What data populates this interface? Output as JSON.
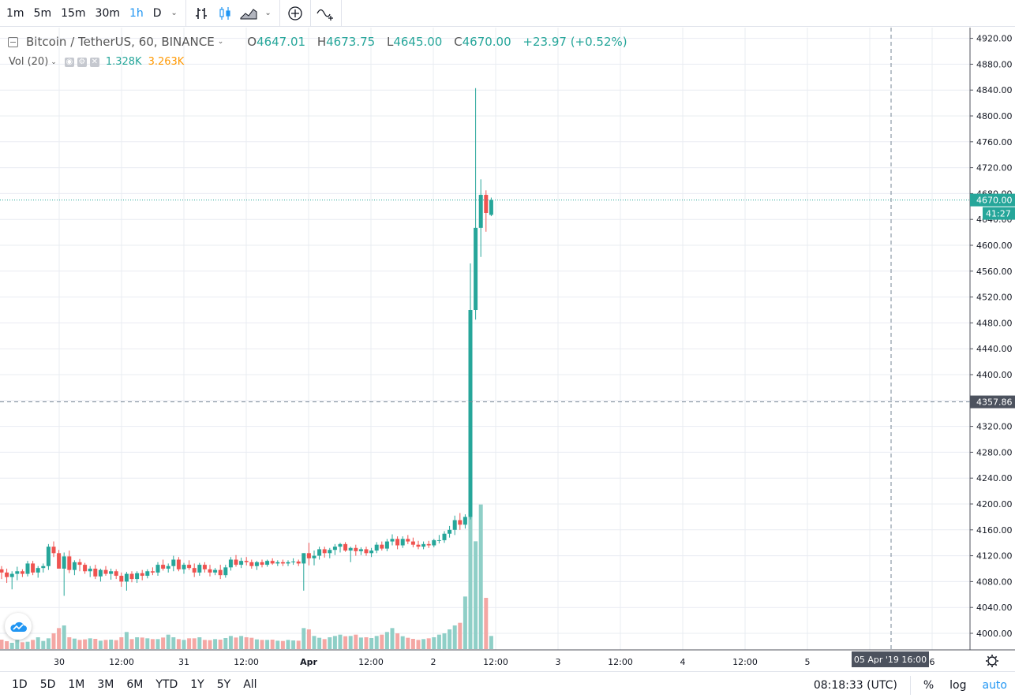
{
  "toolbar": {
    "timeframes": [
      "1m",
      "5m",
      "15m",
      "30m",
      "1h",
      "D"
    ],
    "active_timeframe": "1h",
    "icons": [
      "bar-style-icon",
      "candles-icon",
      "area-style-icon",
      "add-indicator-icon",
      "compare-icon"
    ]
  },
  "legend": {
    "symbol": "Bitcoin / TetherUS, 60, BINANCE",
    "o_label": "O",
    "o": "4647.01",
    "h_label": "H",
    "h": "4673.75",
    "l_label": "L",
    "l": "4645.00",
    "c_label": "C",
    "c": "4670.00",
    "change": "+23.97 (+0.52%)"
  },
  "volume_legend": {
    "label": "Vol (20)",
    "v1": "1.328K",
    "v2": "3.263K",
    "v1_color": "#26a69a",
    "v2_color": "#ff9800"
  },
  "price_axis": {
    "current_price": "4670.00",
    "countdown": "41:27",
    "crosshair_price": "4357.86",
    "current_price_color": "#26a69a",
    "crosshair_color": "#4c525e"
  },
  "time_axis": {
    "crosshair_label": "05 Apr '19   16:00"
  },
  "bottom": {
    "ranges": [
      "1D",
      "5D",
      "1M",
      "3M",
      "6M",
      "YTD",
      "1Y",
      "5Y",
      "All"
    ],
    "clock": "08:18:33 (UTC)",
    "percent": "%",
    "log": "log",
    "auto": "auto"
  },
  "colors": {
    "up": "#26a69a",
    "down": "#ef5350",
    "vol_up": "#8fcfc7",
    "vol_down": "#f4a7a4",
    "grid": "#e9ecf2"
  },
  "chart_data": {
    "type": "candlestick",
    "title": "Bitcoin / TetherUS, 60, BINANCE",
    "ylim": [
      3980,
      4930
    ],
    "y_ticks": [
      4000,
      4040,
      4080,
      4120,
      4160,
      4200,
      4240,
      4280,
      4320,
      4360,
      4400,
      4440,
      4480,
      4520,
      4560,
      4600,
      4640,
      4680,
      4720,
      4760,
      4800,
      4840,
      4880,
      4920
    ],
    "x_ticks": [
      "30",
      "12:00",
      "31",
      "12:00",
      "Apr",
      "12:00",
      "2",
      "12:00",
      "3",
      "12:00",
      "4",
      "12:00",
      "5",
      "12:00",
      "6"
    ],
    "grid": true,
    "candles": [
      {
        "o": 4099,
        "h": 4104,
        "l": 4084,
        "c": 4094
      },
      {
        "o": 4094,
        "h": 4100,
        "l": 4078,
        "c": 4087
      },
      {
        "o": 4087,
        "h": 4096,
        "l": 4068,
        "c": 4092
      },
      {
        "o": 4092,
        "h": 4103,
        "l": 4082,
        "c": 4096
      },
      {
        "o": 4096,
        "h": 4099,
        "l": 4087,
        "c": 4092
      },
      {
        "o": 4092,
        "h": 4112,
        "l": 4088,
        "c": 4108
      },
      {
        "o": 4108,
        "h": 4112,
        "l": 4090,
        "c": 4094
      },
      {
        "o": 4094,
        "h": 4104,
        "l": 4086,
        "c": 4101
      },
      {
        "o": 4101,
        "h": 4108,
        "l": 4094,
        "c": 4104
      },
      {
        "o": 4104,
        "h": 4138,
        "l": 4098,
        "c": 4134
      },
      {
        "o": 4134,
        "h": 4142,
        "l": 4118,
        "c": 4124
      },
      {
        "o": 4124,
        "h": 4129,
        "l": 4100,
        "c": 4100
      },
      {
        "o": 4100,
        "h": 4125,
        "l": 4058,
        "c": 4119
      },
      {
        "o": 4119,
        "h": 4128,
        "l": 4093,
        "c": 4098
      },
      {
        "o": 4098,
        "h": 4113,
        "l": 4090,
        "c": 4110
      },
      {
        "o": 4110,
        "h": 4115,
        "l": 4096,
        "c": 4106
      },
      {
        "o": 4106,
        "h": 4109,
        "l": 4092,
        "c": 4096
      },
      {
        "o": 4096,
        "h": 4104,
        "l": 4087,
        "c": 4100
      },
      {
        "o": 4100,
        "h": 4106,
        "l": 4084,
        "c": 4088
      },
      {
        "o": 4088,
        "h": 4100,
        "l": 4080,
        "c": 4098
      },
      {
        "o": 4098,
        "h": 4104,
        "l": 4089,
        "c": 4092
      },
      {
        "o": 4092,
        "h": 4100,
        "l": 4083,
        "c": 4096
      },
      {
        "o": 4096,
        "h": 4099,
        "l": 4084,
        "c": 4089
      },
      {
        "o": 4089,
        "h": 4094,
        "l": 4072,
        "c": 4080
      },
      {
        "o": 4080,
        "h": 4095,
        "l": 4066,
        "c": 4092
      },
      {
        "o": 4092,
        "h": 4096,
        "l": 4079,
        "c": 4084
      },
      {
        "o": 4084,
        "h": 4096,
        "l": 4078,
        "c": 4093
      },
      {
        "o": 4093,
        "h": 4098,
        "l": 4082,
        "c": 4089
      },
      {
        "o": 4089,
        "h": 4099,
        "l": 4085,
        "c": 4096
      },
      {
        "o": 4096,
        "h": 4102,
        "l": 4090,
        "c": 4094
      },
      {
        "o": 4094,
        "h": 4110,
        "l": 4089,
        "c": 4106
      },
      {
        "o": 4106,
        "h": 4114,
        "l": 4097,
        "c": 4100
      },
      {
        "o": 4100,
        "h": 4108,
        "l": 4094,
        "c": 4104
      },
      {
        "o": 4104,
        "h": 4120,
        "l": 4096,
        "c": 4114
      },
      {
        "o": 4114,
        "h": 4118,
        "l": 4096,
        "c": 4099
      },
      {
        "o": 4099,
        "h": 4109,
        "l": 4092,
        "c": 4106
      },
      {
        "o": 4106,
        "h": 4113,
        "l": 4098,
        "c": 4101
      },
      {
        "o": 4101,
        "h": 4108,
        "l": 4087,
        "c": 4094
      },
      {
        "o": 4094,
        "h": 4109,
        "l": 4089,
        "c": 4106
      },
      {
        "o": 4106,
        "h": 4110,
        "l": 4094,
        "c": 4099
      },
      {
        "o": 4099,
        "h": 4106,
        "l": 4088,
        "c": 4094
      },
      {
        "o": 4094,
        "h": 4101,
        "l": 4090,
        "c": 4098
      },
      {
        "o": 4098,
        "h": 4106,
        "l": 4084,
        "c": 4090
      },
      {
        "o": 4090,
        "h": 4106,
        "l": 4086,
        "c": 4102
      },
      {
        "o": 4102,
        "h": 4118,
        "l": 4097,
        "c": 4114
      },
      {
        "o": 4114,
        "h": 4121,
        "l": 4103,
        "c": 4106
      },
      {
        "o": 4106,
        "h": 4117,
        "l": 4101,
        "c": 4112
      },
      {
        "o": 4112,
        "h": 4118,
        "l": 4105,
        "c": 4110
      },
      {
        "o": 4110,
        "h": 4114,
        "l": 4100,
        "c": 4104
      },
      {
        "o": 4104,
        "h": 4112,
        "l": 4098,
        "c": 4110
      },
      {
        "o": 4110,
        "h": 4114,
        "l": 4102,
        "c": 4106
      },
      {
        "o": 4106,
        "h": 4114,
        "l": 4103,
        "c": 4112
      },
      {
        "o": 4112,
        "h": 4116,
        "l": 4106,
        "c": 4108
      },
      {
        "o": 4108,
        "h": 4113,
        "l": 4104,
        "c": 4110
      },
      {
        "o": 4110,
        "h": 4114,
        "l": 4104,
        "c": 4108
      },
      {
        "o": 4108,
        "h": 4113,
        "l": 4104,
        "c": 4110
      },
      {
        "o": 4110,
        "h": 4116,
        "l": 4106,
        "c": 4111
      },
      {
        "o": 4111,
        "h": 4114,
        "l": 4104,
        "c": 4108
      },
      {
        "o": 4108,
        "h": 4124,
        "l": 4066,
        "c": 4124
      },
      {
        "o": 4124,
        "h": 4140,
        "l": 4105,
        "c": 4116
      },
      {
        "o": 4116,
        "h": 4128,
        "l": 4105,
        "c": 4120
      },
      {
        "o": 4120,
        "h": 4134,
        "l": 4114,
        "c": 4130
      },
      {
        "o": 4130,
        "h": 4134,
        "l": 4117,
        "c": 4124
      },
      {
        "o": 4124,
        "h": 4132,
        "l": 4116,
        "c": 4129
      },
      {
        "o": 4129,
        "h": 4138,
        "l": 4121,
        "c": 4134
      },
      {
        "o": 4134,
        "h": 4140,
        "l": 4125,
        "c": 4138
      },
      {
        "o": 4138,
        "h": 4141,
        "l": 4126,
        "c": 4128
      },
      {
        "o": 4128,
        "h": 4134,
        "l": 4110,
        "c": 4132
      },
      {
        "o": 4132,
        "h": 4137,
        "l": 4120,
        "c": 4127
      },
      {
        "o": 4127,
        "h": 4133,
        "l": 4121,
        "c": 4130
      },
      {
        "o": 4130,
        "h": 4134,
        "l": 4120,
        "c": 4124
      },
      {
        "o": 4124,
        "h": 4132,
        "l": 4118,
        "c": 4128
      },
      {
        "o": 4128,
        "h": 4141,
        "l": 4124,
        "c": 4137
      },
      {
        "o": 4137,
        "h": 4142,
        "l": 4128,
        "c": 4131
      },
      {
        "o": 4131,
        "h": 4146,
        "l": 4127,
        "c": 4142
      },
      {
        "o": 4142,
        "h": 4153,
        "l": 4136,
        "c": 4146
      },
      {
        "o": 4146,
        "h": 4150,
        "l": 4130,
        "c": 4136
      },
      {
        "o": 4136,
        "h": 4150,
        "l": 4132,
        "c": 4146
      },
      {
        "o": 4146,
        "h": 4152,
        "l": 4138,
        "c": 4142
      },
      {
        "o": 4142,
        "h": 4148,
        "l": 4133,
        "c": 4137
      },
      {
        "o": 4137,
        "h": 4143,
        "l": 4130,
        "c": 4134
      },
      {
        "o": 4134,
        "h": 4142,
        "l": 4130,
        "c": 4138
      },
      {
        "o": 4138,
        "h": 4143,
        "l": 4132,
        "c": 4136
      },
      {
        "o": 4136,
        "h": 4146,
        "l": 4133,
        "c": 4144
      },
      {
        "o": 4144,
        "h": 4152,
        "l": 4139,
        "c": 4144
      },
      {
        "o": 4144,
        "h": 4158,
        "l": 4140,
        "c": 4154
      },
      {
        "o": 4154,
        "h": 4166,
        "l": 4148,
        "c": 4160
      },
      {
        "o": 4160,
        "h": 4182,
        "l": 4152,
        "c": 4175
      },
      {
        "o": 4175,
        "h": 4186,
        "l": 4160,
        "c": 4168
      },
      {
        "o": 4168,
        "h": 4184,
        "l": 4162,
        "c": 4180
      },
      {
        "o": 4180,
        "h": 4572,
        "l": 4176,
        "c": 4500
      },
      {
        "o": 4500,
        "h": 4843,
        "l": 4485,
        "c": 4627
      },
      {
        "o": 4627,
        "h": 4702,
        "l": 4582,
        "c": 4678
      },
      {
        "o": 4678,
        "h": 4685,
        "l": 4621,
        "c": 4650
      },
      {
        "o": 4647.01,
        "h": 4673.75,
        "l": 4645.0,
        "c": 4670.0
      }
    ],
    "volume_ylim": [
      0,
      12000
    ],
    "volume": [
      720,
      600,
      480,
      700,
      520,
      560,
      700,
      900,
      620,
      820,
      1200,
      1600,
      1800,
      900,
      800,
      700,
      740,
      820,
      780,
      640,
      700,
      720,
      680,
      900,
      1300,
      760,
      900,
      880,
      820,
      760,
      760,
      880,
      1100,
      900,
      760,
      700,
      820,
      820,
      900,
      700,
      680,
      760,
      720,
      840,
      1000,
      880,
      1000,
      900,
      860,
      740,
      700,
      700,
      720,
      640,
      620,
      700,
      660,
      640,
      1600,
      1500,
      1000,
      860,
      760,
      900,
      1000,
      1100,
      980,
      1000,
      1100,
      880,
      900,
      840,
      1000,
      1100,
      1300,
      1600,
      1200,
      980,
      860,
      780,
      700,
      760,
      820,
      900,
      1100,
      1200,
      1500,
      1800,
      2000,
      4000,
      11000,
      8200,
      11000,
      3900,
      1000
    ]
  }
}
